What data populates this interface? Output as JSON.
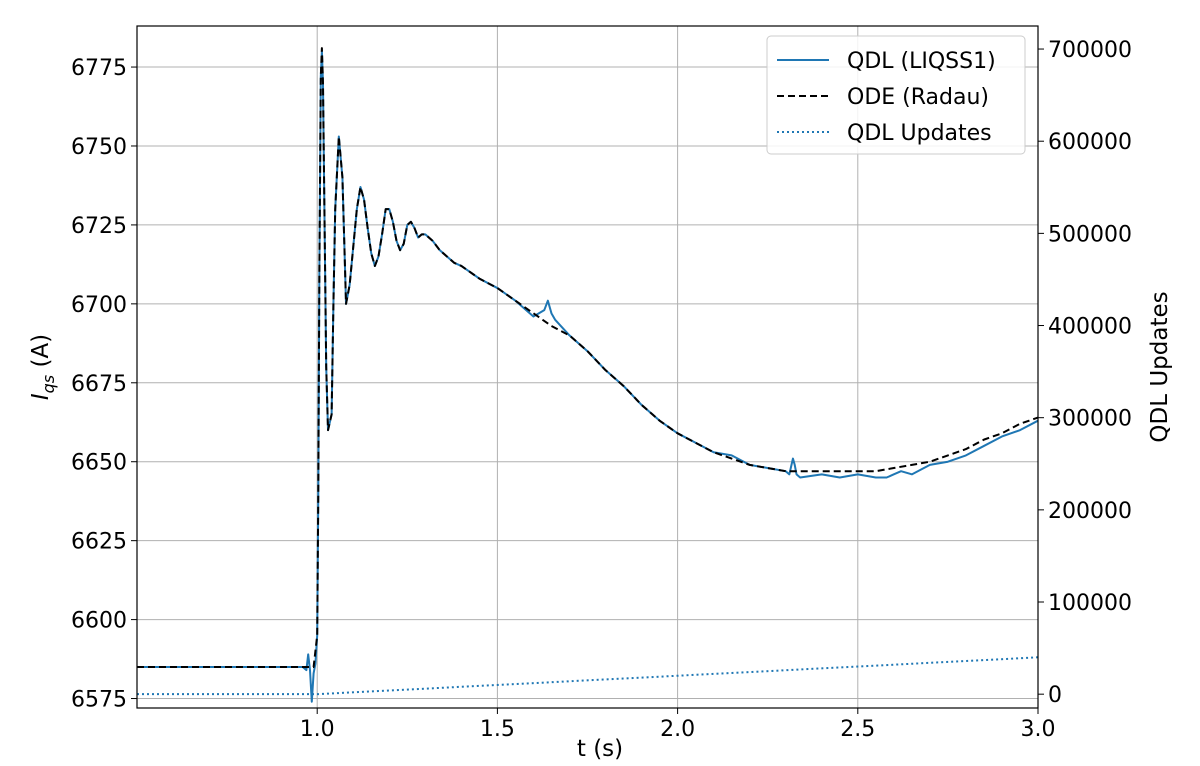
{
  "chart_data": {
    "type": "line",
    "xlabel": "t (s)",
    "ylabel": "I",
    "ylabel_sub": "qs",
    "ylabel_unit": " (A)",
    "y2label": "QDL Updates",
    "xlim": [
      0.5,
      3.0
    ],
    "ylim": [
      6572,
      6788
    ],
    "y2lim": [
      -15000,
      725000
    ],
    "xticks": [
      1.0,
      1.5,
      2.0,
      2.5,
      3.0
    ],
    "xtick_labels": [
      "1.0",
      "1.5",
      "2.0",
      "2.5",
      "3.0"
    ],
    "yticks": [
      6575,
      6600,
      6625,
      6650,
      6675,
      6700,
      6725,
      6750,
      6775
    ],
    "ytick_labels": [
      "6575",
      "6600",
      "6625",
      "6650",
      "6675",
      "6700",
      "6725",
      "6750",
      "6775"
    ],
    "y2ticks": [
      0,
      100000,
      200000,
      300000,
      400000,
      500000,
      600000,
      700000
    ],
    "y2tick_labels": [
      "0",
      "100000",
      "200000",
      "300000",
      "400000",
      "500000",
      "600000",
      "700000"
    ],
    "grid": true,
    "legend_position": "top-right",
    "colors": {
      "qdl": "#1f77b4",
      "ode": "#000000",
      "updates": "#1f77b4"
    },
    "series": [
      {
        "name": "QDL (LIQSS1)",
        "axis": "left",
        "style": "solid",
        "x": [
          0.5,
          0.9,
          0.96,
          0.97,
          0.975,
          0.98,
          0.985,
          0.99,
          0.995,
          1.0,
          1.003,
          1.006,
          1.01,
          1.013,
          1.016,
          1.02,
          1.025,
          1.03,
          1.04,
          1.045,
          1.05,
          1.06,
          1.07,
          1.075,
          1.08,
          1.09,
          1.1,
          1.11,
          1.12,
          1.13,
          1.14,
          1.15,
          1.16,
          1.17,
          1.18,
          1.19,
          1.2,
          1.21,
          1.22,
          1.23,
          1.24,
          1.25,
          1.26,
          1.27,
          1.28,
          1.29,
          1.3,
          1.32,
          1.34,
          1.36,
          1.38,
          1.4,
          1.45,
          1.5,
          1.55,
          1.6,
          1.63,
          1.64,
          1.65,
          1.66,
          1.7,
          1.75,
          1.8,
          1.85,
          1.9,
          1.95,
          2.0,
          2.05,
          2.1,
          2.15,
          2.2,
          2.25,
          2.3,
          2.31,
          2.32,
          2.325,
          2.33,
          2.34,
          2.4,
          2.45,
          2.5,
          2.55,
          2.58,
          2.6,
          2.62,
          2.65,
          2.7,
          2.75,
          2.8,
          2.85,
          2.9,
          2.95,
          3.0
        ],
        "y": [
          6585,
          6585,
          6585,
          6584,
          6589,
          6584,
          6574,
          6583,
          6586,
          6595,
          6640,
          6710,
          6772,
          6780,
          6770,
          6730,
          6680,
          6660,
          6665,
          6700,
          6730,
          6753,
          6740,
          6720,
          6700,
          6706,
          6718,
          6730,
          6737,
          6733,
          6724,
          6716,
          6712,
          6715,
          6722,
          6730,
          6730,
          6726,
          6720,
          6717,
          6719,
          6725,
          6726,
          6724,
          6721,
          6722,
          6722,
          6720,
          6717,
          6715,
          6713,
          6712,
          6708,
          6705,
          6701,
          6696,
          6698,
          6701,
          6697,
          6695,
          6690,
          6685,
          6679,
          6674,
          6668,
          6663,
          6659,
          6656,
          6653,
          6652,
          6649,
          6648,
          6647,
          6646,
          6651,
          6649,
          6646,
          6645,
          6646,
          6645,
          6646,
          6645,
          6645,
          6646,
          6647,
          6646,
          6649,
          6650,
          6652,
          6655,
          6658,
          6660,
          6663
        ]
      },
      {
        "name": "ODE (Radau)",
        "axis": "left",
        "style": "dashed",
        "x": [
          0.5,
          0.99,
          1.0,
          1.003,
          1.006,
          1.01,
          1.013,
          1.016,
          1.02,
          1.025,
          1.03,
          1.04,
          1.045,
          1.05,
          1.06,
          1.07,
          1.075,
          1.08,
          1.09,
          1.1,
          1.11,
          1.12,
          1.13,
          1.14,
          1.15,
          1.16,
          1.17,
          1.18,
          1.19,
          1.2,
          1.21,
          1.22,
          1.23,
          1.24,
          1.25,
          1.26,
          1.27,
          1.28,
          1.29,
          1.3,
          1.32,
          1.34,
          1.36,
          1.38,
          1.4,
          1.45,
          1.5,
          1.55,
          1.6,
          1.65,
          1.7,
          1.75,
          1.8,
          1.85,
          1.9,
          1.95,
          2.0,
          2.05,
          2.1,
          2.15,
          2.2,
          2.25,
          2.3,
          2.35,
          2.4,
          2.45,
          2.5,
          2.55,
          2.6,
          2.65,
          2.7,
          2.75,
          2.8,
          2.85,
          2.9,
          2.95,
          3.0
        ],
        "y": [
          6585,
          6585,
          6595,
          6640,
          6710,
          6772,
          6781,
          6770,
          6730,
          6680,
          6660,
          6665,
          6700,
          6730,
          6753,
          6740,
          6720,
          6700,
          6706,
          6718,
          6730,
          6737,
          6733,
          6724,
          6716,
          6712,
          6715,
          6722,
          6730,
          6730,
          6726,
          6720,
          6717,
          6719,
          6725,
          6726,
          6724,
          6721,
          6722,
          6722,
          6720,
          6717,
          6715,
          6713,
          6712,
          6708,
          6705,
          6701,
          6697,
          6693,
          6690,
          6685,
          6679,
          6674,
          6668,
          6663,
          6659,
          6656,
          6653,
          6651,
          6649,
          6648,
          6647,
          6647,
          6647,
          6647,
          6647,
          6647,
          6648,
          6649,
          6650,
          6652,
          6654,
          6657,
          6659,
          6662,
          6664
        ]
      },
      {
        "name": "QDL Updates",
        "axis": "right",
        "style": "dotted",
        "x": [
          0.5,
          1.0,
          3.0
        ],
        "y": [
          0,
          0,
          40000
        ]
      }
    ]
  }
}
